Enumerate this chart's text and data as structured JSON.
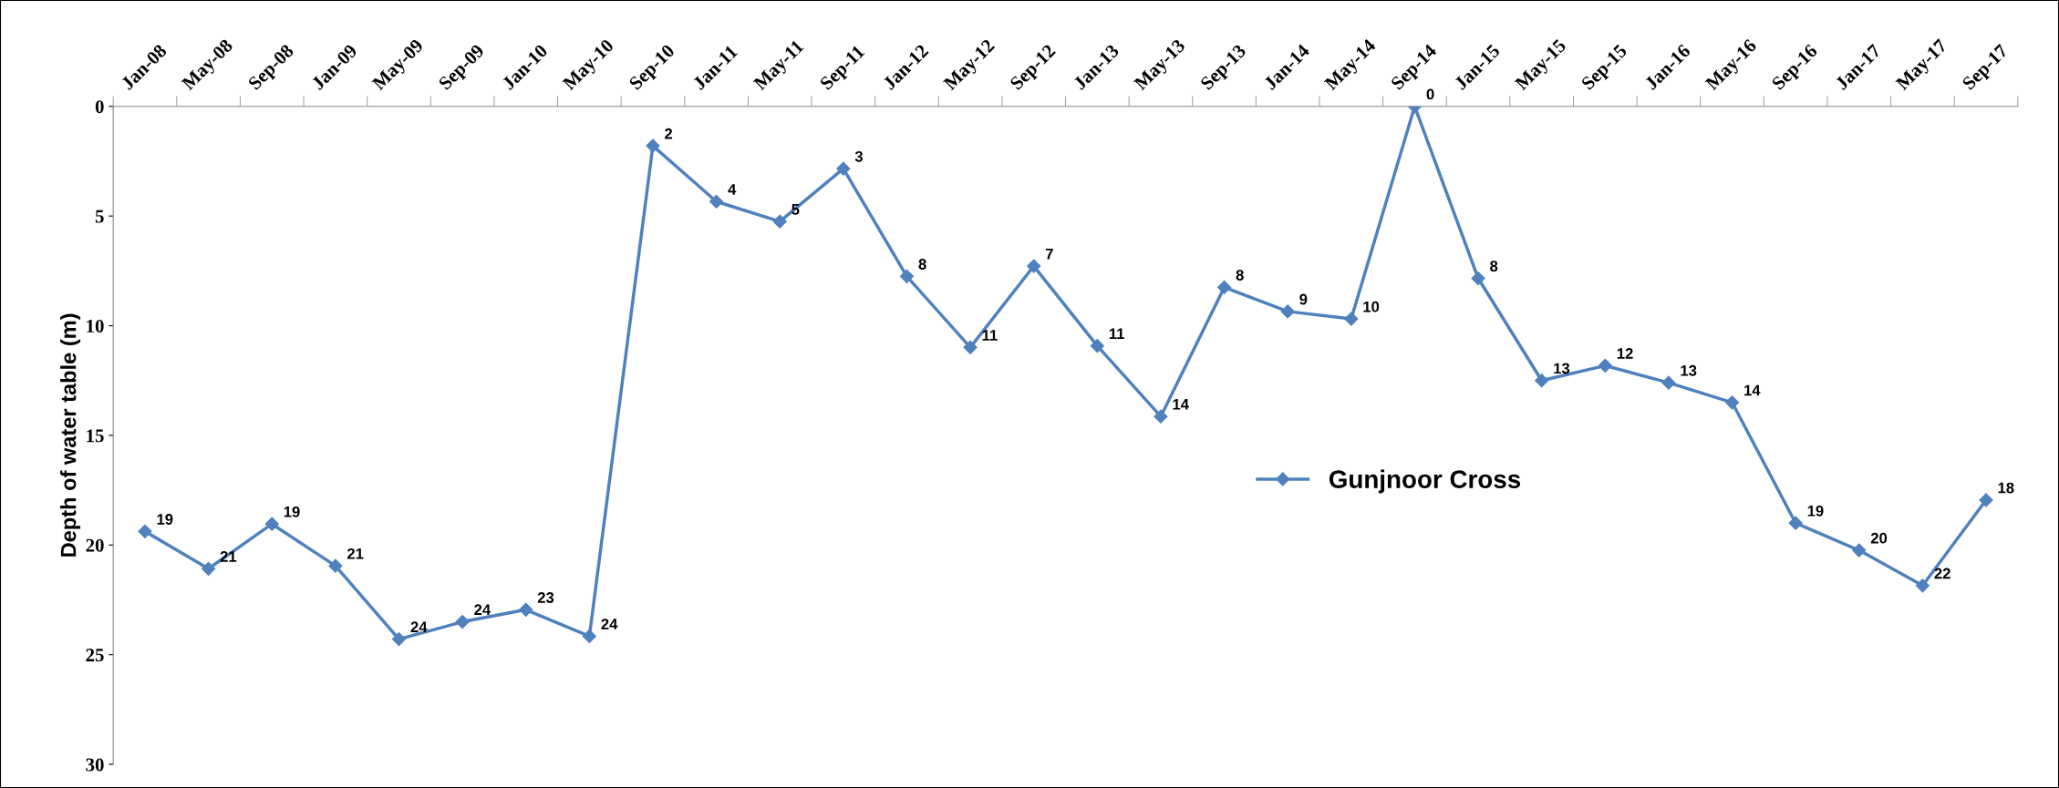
{
  "chart_data": {
    "type": "line",
    "ylabel": "Depth of water table (m)",
    "categories": [
      "Jan-08",
      "May-08",
      "Sep-08",
      "Jan-09",
      "May-09",
      "Sep-09",
      "Jan-10",
      "May-10",
      "Sep-10",
      "Jan-11",
      "May-11",
      "Sep-11",
      "Jan-12",
      "May-12",
      "Sep-12",
      "Jan-13",
      "May-13",
      "Sep-13",
      "Jan-14",
      "May-14",
      "Sep-14",
      "Jan-15",
      "May-15",
      "Sep-15",
      "Jan-16",
      "May-16",
      "Sep-16",
      "Jan-17",
      "May-17",
      "Sep-17"
    ],
    "series": [
      {
        "name": "Gunjnoor Cross",
        "color": "#4f81bd",
        "values": [
          19.38,
          21.08,
          19.04,
          20.95,
          24.29,
          23.5,
          22.95,
          24.16,
          1.8,
          4.34,
          5.25,
          2.84,
          7.75,
          10.99,
          7.28,
          10.92,
          14.14,
          8.25,
          9.35,
          9.69,
          0,
          7.84,
          12.5,
          11.82,
          12.6,
          13.5,
          19.0,
          20.24,
          21.85,
          17.95
        ],
        "value_labels": [
          "19",
          "21",
          "19",
          "21",
          "24",
          "24",
          "23",
          "24",
          "2",
          "4",
          "5",
          "3",
          "8",
          "11",
          "7",
          "11",
          "14",
          "8",
          "9",
          "10",
          "0",
          "8",
          "13",
          "12",
          "13",
          "14",
          "19",
          "20",
          "22",
          "18"
        ]
      }
    ],
    "ylim": [
      30,
      0
    ],
    "yticks": [
      0,
      5,
      10,
      15,
      20,
      25,
      30
    ],
    "marker": "diamond",
    "legend": "center",
    "grid": false
  }
}
